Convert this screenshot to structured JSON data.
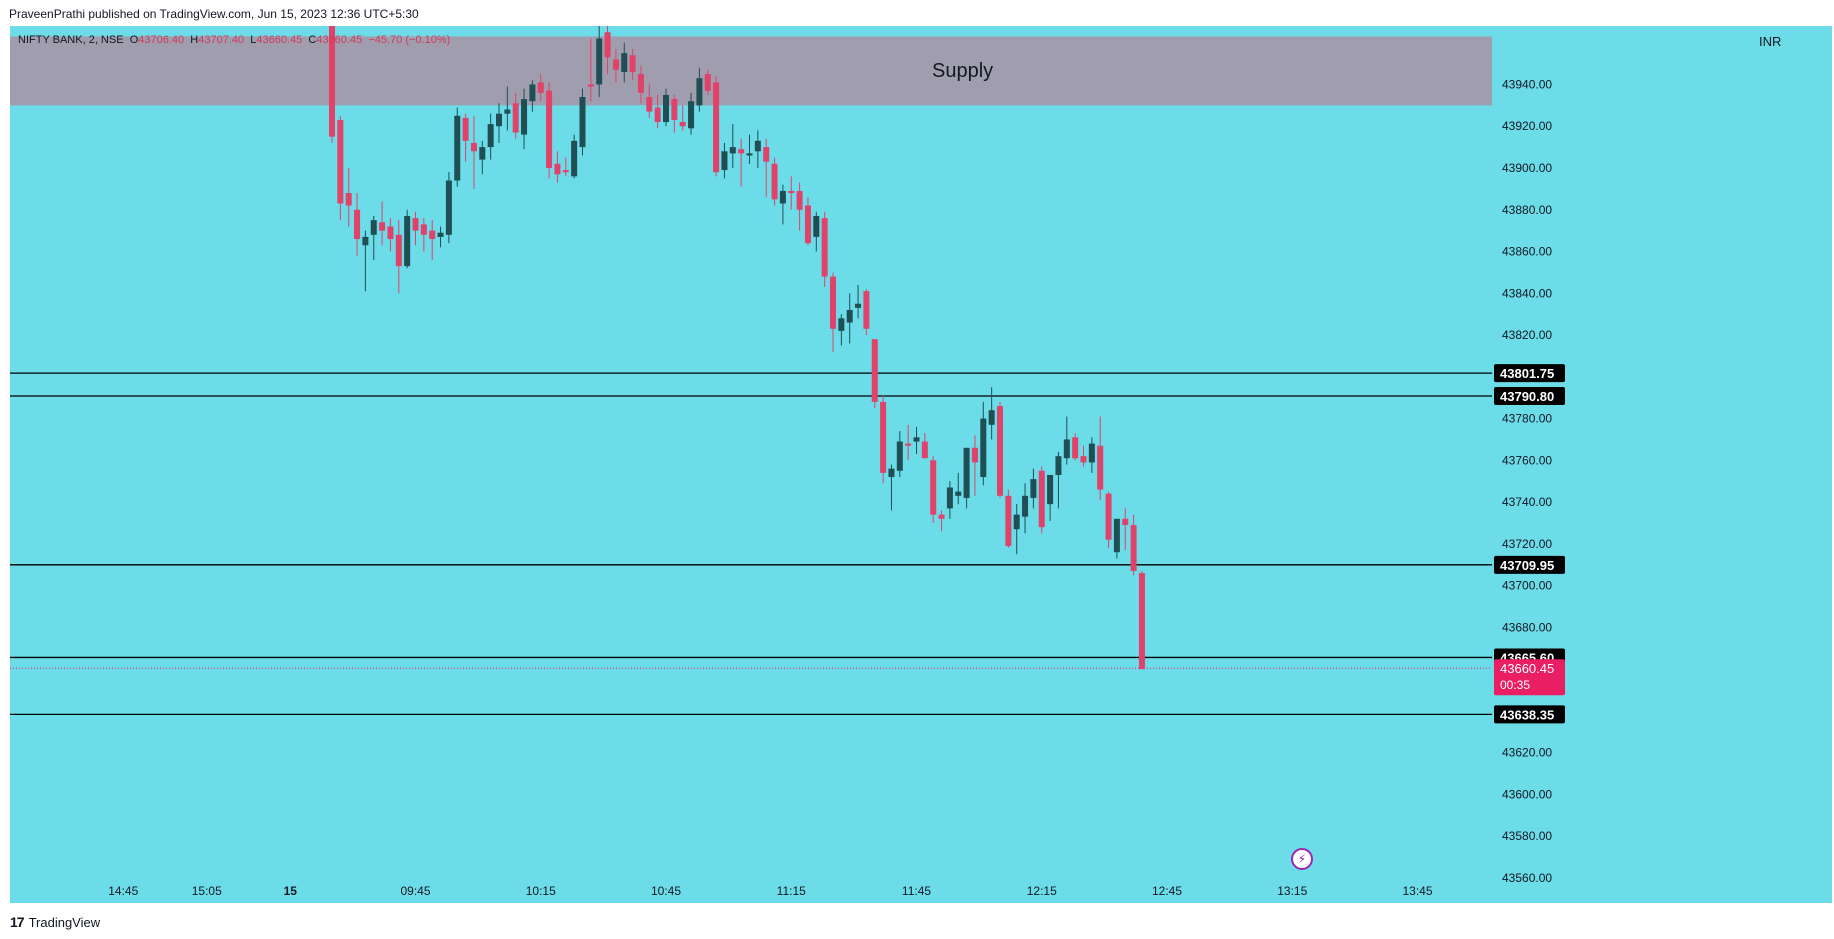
{
  "publish_line": "PraveenPrathi published on TradingView.com, Jun 15, 2023 12:36 UTC+5:30",
  "symbol": {
    "name": "NIFTY BANK, 2, NSE",
    "open_label": "O",
    "open": "43706.40",
    "high_label": "H",
    "high": "43707.40",
    "low_label": "L",
    "low": "43660.45",
    "close_label": "C",
    "close": "43660.45",
    "change": "−45.70 (−0.10%)"
  },
  "zone": {
    "label": "Supply",
    "from": 43930,
    "to": 43963,
    "color": "#a09eae"
  },
  "currency": "INR",
  "footer": {
    "brand": "TradingView",
    "logo_icon": "tradingview-logo-icon"
  },
  "live_icon": "lightning-icon",
  "colors": {
    "background": "#6bdce8",
    "up": "#1f4f54",
    "down": "#e0426a",
    "line": "#000000",
    "last_price": "#e91e63"
  },
  "chart_data": {
    "type": "candlestick",
    "timeframe": "2 minutes",
    "ylim": [
      43548,
      43968
    ],
    "y_ticks": [
      43560,
      43580,
      43600,
      43620,
      43640,
      43660,
      43680,
      43700,
      43720,
      43740,
      43760,
      43780,
      43800,
      43820,
      43840,
      43860,
      43880,
      43900,
      43920,
      43940
    ],
    "y_tick_labels": [
      "43560.00",
      "43580.00",
      "43600.00",
      "43620.00",
      "43640.00",
      "43660.00",
      "43680.00",
      "43700.00",
      "43720.00",
      "43740.00",
      "43760.00",
      "43780.00",
      "43800.00",
      "43820.00",
      "43840.00",
      "43860.00",
      "43880.00",
      "43900.00",
      "43920.00",
      "43940.00"
    ],
    "x_tick_labels": [
      "14:45",
      "15:05",
      "15",
      "09:45",
      "10:15",
      "10:45",
      "11:15",
      "11:45",
      "12:15",
      "12:45",
      "13:15",
      "13:45"
    ],
    "x_tick_bar_index": [
      -25,
      -15,
      -5,
      10,
      25,
      40,
      55,
      70,
      85,
      100,
      115,
      130
    ],
    "horizontal_lines": [
      {
        "price": 43801.75,
        "label": "43801.75"
      },
      {
        "price": 43790.8,
        "label": "43790.80"
      },
      {
        "price": 43709.95,
        "label": "43709.95"
      },
      {
        "price": 43665.6,
        "label": "43665.60"
      },
      {
        "price": 43638.35,
        "label": "43638.35"
      }
    ],
    "last_price": {
      "price": 43660.45,
      "label": "43660.45",
      "countdown": "00:35"
    },
    "candles": [
      {
        "o": 43970,
        "h": 43975,
        "l": 43912,
        "c": 43915
      },
      {
        "o": 43923,
        "h": 43925,
        "l": 43875,
        "c": 43883
      },
      {
        "o": 43888,
        "h": 43900,
        "l": 43872,
        "c": 43882
      },
      {
        "o": 43880,
        "h": 43888,
        "l": 43858,
        "c": 43866
      },
      {
        "o": 43863,
        "h": 43870,
        "l": 43841,
        "c": 43867
      },
      {
        "o": 43868,
        "h": 43877,
        "l": 43856,
        "c": 43875
      },
      {
        "o": 43874,
        "h": 43884,
        "l": 43863,
        "c": 43870
      },
      {
        "o": 43872,
        "h": 43876,
        "l": 43860,
        "c": 43866
      },
      {
        "o": 43868,
        "h": 43875,
        "l": 43840,
        "c": 43853
      },
      {
        "o": 43853,
        "h": 43880,
        "l": 43852,
        "c": 43877
      },
      {
        "o": 43876,
        "h": 43879,
        "l": 43863,
        "c": 43870
      },
      {
        "o": 43873,
        "h": 43876,
        "l": 43860,
        "c": 43868
      },
      {
        "o": 43870,
        "h": 43875,
        "l": 43856,
        "c": 43866
      },
      {
        "o": 43867,
        "h": 43872,
        "l": 43862,
        "c": 43869
      },
      {
        "o": 43868,
        "h": 43898,
        "l": 43864,
        "c": 43894
      },
      {
        "o": 43894,
        "h": 43929,
        "l": 43891,
        "c": 43925
      },
      {
        "o": 43924,
        "h": 43926,
        "l": 43903,
        "c": 43913
      },
      {
        "o": 43912,
        "h": 43925,
        "l": 43890,
        "c": 43908
      },
      {
        "o": 43904,
        "h": 43913,
        "l": 43897,
        "c": 43910
      },
      {
        "o": 43910,
        "h": 43926,
        "l": 43904,
        "c": 43921
      },
      {
        "o": 43920,
        "h": 43931,
        "l": 43912,
        "c": 43926
      },
      {
        "o": 43926,
        "h": 43939,
        "l": 43918,
        "c": 43928
      },
      {
        "o": 43931,
        "h": 43936,
        "l": 43914,
        "c": 43917
      },
      {
        "o": 43916,
        "h": 43938,
        "l": 43909,
        "c": 43933
      },
      {
        "o": 43932,
        "h": 43942,
        "l": 43927,
        "c": 43940
      },
      {
        "o": 43941,
        "h": 43945,
        "l": 43932,
        "c": 43936
      },
      {
        "o": 43937,
        "h": 43941,
        "l": 43895,
        "c": 43900
      },
      {
        "o": 43902,
        "h": 43908,
        "l": 43893,
        "c": 43897
      },
      {
        "o": 43899,
        "h": 43905,
        "l": 43896,
        "c": 43898
      },
      {
        "o": 43896,
        "h": 43916,
        "l": 43895,
        "c": 43913
      },
      {
        "o": 43910,
        "h": 43938,
        "l": 43906,
        "c": 43934
      },
      {
        "o": 43940,
        "h": 43962,
        "l": 43932,
        "c": 43939
      },
      {
        "o": 43940,
        "h": 43970,
        "l": 43934,
        "c": 43962
      },
      {
        "o": 43965,
        "h": 43969,
        "l": 43945,
        "c": 43953
      },
      {
        "o": 43952,
        "h": 43957,
        "l": 43941,
        "c": 43947
      },
      {
        "o": 43946,
        "h": 43960,
        "l": 43941,
        "c": 43955
      },
      {
        "o": 43954,
        "h": 43957,
        "l": 43942,
        "c": 43946
      },
      {
        "o": 43945,
        "h": 43949,
        "l": 43931,
        "c": 43936
      },
      {
        "o": 43934,
        "h": 43940,
        "l": 43924,
        "c": 43927
      },
      {
        "o": 43929,
        "h": 43935,
        "l": 43919,
        "c": 43922
      },
      {
        "o": 43922,
        "h": 43938,
        "l": 43920,
        "c": 43935
      },
      {
        "o": 43933,
        "h": 43935,
        "l": 43917,
        "c": 43923
      },
      {
        "o": 43922,
        "h": 43930,
        "l": 43918,
        "c": 43920
      },
      {
        "o": 43919,
        "h": 43936,
        "l": 43916,
        "c": 43932
      },
      {
        "o": 43930,
        "h": 43948,
        "l": 43927,
        "c": 43943
      },
      {
        "o": 43945,
        "h": 43947,
        "l": 43935,
        "c": 43937
      },
      {
        "o": 43941,
        "h": 43944,
        "l": 43896,
        "c": 43898
      },
      {
        "o": 43899,
        "h": 43912,
        "l": 43895,
        "c": 43908
      },
      {
        "o": 43907,
        "h": 43921,
        "l": 43900,
        "c": 43910
      },
      {
        "o": 43909,
        "h": 43914,
        "l": 43891,
        "c": 43907
      },
      {
        "o": 43906,
        "h": 43916,
        "l": 43902,
        "c": 43907
      },
      {
        "o": 43908,
        "h": 43918,
        "l": 43900,
        "c": 43913
      },
      {
        "o": 43910,
        "h": 43914,
        "l": 43886,
        "c": 43903
      },
      {
        "o": 43902,
        "h": 43905,
        "l": 43882,
        "c": 43885
      },
      {
        "o": 43883,
        "h": 43892,
        "l": 43873,
        "c": 43889
      },
      {
        "o": 43889,
        "h": 43896,
        "l": 43880,
        "c": 43888
      },
      {
        "o": 43889,
        "h": 43893,
        "l": 43870,
        "c": 43880
      },
      {
        "o": 43882,
        "h": 43886,
        "l": 43863,
        "c": 43864
      },
      {
        "o": 43867,
        "h": 43879,
        "l": 43860,
        "c": 43877
      },
      {
        "o": 43876,
        "h": 43879,
        "l": 43843,
        "c": 43848
      },
      {
        "o": 43848,
        "h": 43850,
        "l": 43812,
        "c": 43823
      },
      {
        "o": 43822,
        "h": 43830,
        "l": 43815,
        "c": 43828
      },
      {
        "o": 43826,
        "h": 43840,
        "l": 43816,
        "c": 43832
      },
      {
        "o": 43833,
        "h": 43844,
        "l": 43828,
        "c": 43835
      },
      {
        "o": 43841,
        "h": 43842,
        "l": 43820,
        "c": 43823
      },
      {
        "o": 43818,
        "h": 43817,
        "l": 43785,
        "c": 43788
      },
      {
        "o": 43788,
        "h": 43791,
        "l": 43749,
        "c": 43754
      },
      {
        "o": 43752,
        "h": 43758,
        "l": 43736,
        "c": 43756
      },
      {
        "o": 43755,
        "h": 43774,
        "l": 43752,
        "c": 43769
      },
      {
        "o": 43768,
        "h": 43777,
        "l": 43760,
        "c": 43767
      },
      {
        "o": 43769,
        "h": 43776,
        "l": 43763,
        "c": 43771
      },
      {
        "o": 43769,
        "h": 43773,
        "l": 43761,
        "c": 43761
      },
      {
        "o": 43760,
        "h": 43762,
        "l": 43730,
        "c": 43734
      },
      {
        "o": 43734,
        "h": 43736,
        "l": 43726,
        "c": 43732
      },
      {
        "o": 43737,
        "h": 43750,
        "l": 43732,
        "c": 43747
      },
      {
        "o": 43743,
        "h": 43754,
        "l": 43739,
        "c": 43745
      },
      {
        "o": 43742,
        "h": 43764,
        "l": 43737,
        "c": 43766
      },
      {
        "o": 43766,
        "h": 43772,
        "l": 43743,
        "c": 43759
      },
      {
        "o": 43752,
        "h": 43788,
        "l": 43748,
        "c": 43780
      },
      {
        "o": 43777,
        "h": 43795,
        "l": 43770,
        "c": 43784
      },
      {
        "o": 43786,
        "h": 43788,
        "l": 43742,
        "c": 43743
      },
      {
        "o": 43743,
        "h": 43746,
        "l": 43718,
        "c": 43719
      },
      {
        "o": 43727,
        "h": 43739,
        "l": 43715,
        "c": 43734
      },
      {
        "o": 43733,
        "h": 43749,
        "l": 43725,
        "c": 43743
      },
      {
        "o": 43742,
        "h": 43756,
        "l": 43737,
        "c": 43751
      },
      {
        "o": 43755,
        "h": 43757,
        "l": 43725,
        "c": 43728
      },
      {
        "o": 43739,
        "h": 43751,
        "l": 43731,
        "c": 43753
      },
      {
        "o": 43753,
        "h": 43764,
        "l": 43737,
        "c": 43762
      },
      {
        "o": 43761,
        "h": 43781,
        "l": 43758,
        "c": 43770
      },
      {
        "o": 43771,
        "h": 43773,
        "l": 43760,
        "c": 43761
      },
      {
        "o": 43762,
        "h": 43767,
        "l": 43757,
        "c": 43759
      },
      {
        "o": 43759,
        "h": 43771,
        "l": 43754,
        "c": 43768
      },
      {
        "o": 43767,
        "h": 43781,
        "l": 43741,
        "c": 43746
      },
      {
        "o": 43744,
        "h": 43745,
        "l": 43718,
        "c": 43722
      },
      {
        "o": 43716,
        "h": 43731,
        "l": 43713,
        "c": 43732
      },
      {
        "o": 43732,
        "h": 43737,
        "l": 43717,
        "c": 43729
      },
      {
        "o": 43729,
        "h": 43734,
        "l": 43705,
        "c": 43707
      },
      {
        "o": 43706,
        "h": 43707,
        "l": 43660,
        "c": 43660
      }
    ]
  }
}
